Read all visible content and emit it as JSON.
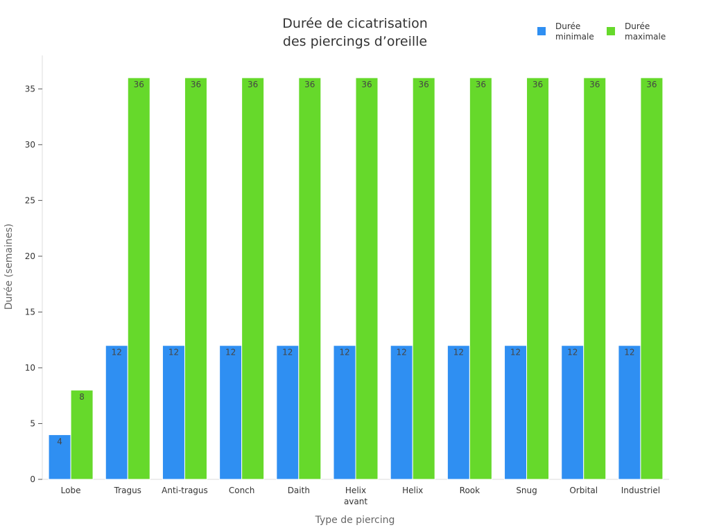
{
  "chart_data": {
    "type": "bar",
    "title_lines": [
      "Durée de cicatrisation",
      "des piercings d’oreille"
    ],
    "xlabel": "Type de piercing",
    "ylabel": "Durée (semaines)",
    "categories": [
      "Lobe",
      "Tragus",
      "Anti-tragus",
      "Conch",
      "Daith",
      "Helix avant",
      "Helix",
      "Rook",
      "Snug",
      "Orbital",
      "Industriel"
    ],
    "series": [
      {
        "name": "Durée minimale",
        "name_lines": [
          "Durée",
          "minimale"
        ],
        "color": "#2f8ff2",
        "values": [
          4,
          12,
          12,
          12,
          12,
          12,
          12,
          12,
          12,
          12,
          12
        ]
      },
      {
        "name": "Durée maximale",
        "name_lines": [
          "Durée",
          "maximale"
        ],
        "color": "#66d92b",
        "values": [
          8,
          36,
          36,
          36,
          36,
          36,
          36,
          36,
          36,
          36,
          36
        ]
      }
    ],
    "ylim": [
      0,
      38
    ],
    "yticks": [
      0,
      5,
      10,
      15,
      20,
      25,
      30,
      35
    ],
    "grid": false,
    "legend_position": "top-right",
    "data_labels": true
  }
}
